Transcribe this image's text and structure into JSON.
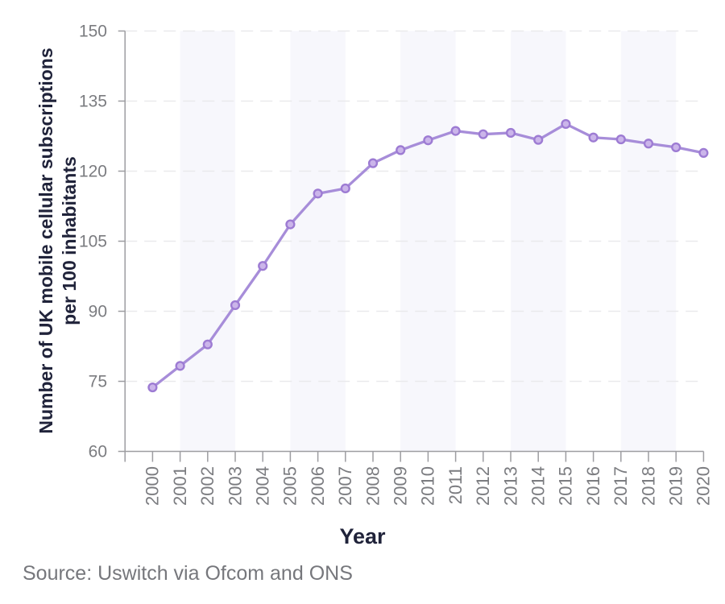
{
  "figure": {
    "source_note": "Source: Uswitch via Ofcom and ONS"
  },
  "chart_data": {
    "type": "line",
    "title": "",
    "xlabel": "Year",
    "ylabel": "Number of UK mobile cellular subscriptions per 100 inhabitants",
    "ylabel_lines": [
      "Number of UK mobile cellular subscriptions",
      "per 100 inhabitants"
    ],
    "x": [
      2000,
      2001,
      2002,
      2003,
      2004,
      2005,
      2006,
      2007,
      2008,
      2009,
      2010,
      2011,
      2012,
      2013,
      2014,
      2015,
      2016,
      2017,
      2018,
      2019,
      2020
    ],
    "series": [
      {
        "values": [
          73.7,
          78.3,
          82.9,
          91.3,
          99.7,
          108.6,
          115.2,
          116.3,
          121.7,
          124.5,
          126.6,
          128.6,
          127.9,
          128.2,
          126.7,
          130.1,
          127.2,
          126.8,
          125.9,
          125.1,
          123.9
        ]
      }
    ],
    "xlim": [
      1999,
      2020
    ],
    "ylim": [
      60,
      150
    ],
    "yticks": [
      60,
      75,
      90,
      105,
      120,
      135,
      150
    ],
    "grid": "horizontal-dashed",
    "legend_position": "none",
    "plot_bands_x": [
      [
        2001,
        2003
      ],
      [
        2005,
        2007
      ],
      [
        2009,
        2011
      ],
      [
        2013,
        2015
      ],
      [
        2017,
        2019
      ]
    ],
    "colors": {
      "line": "#a78dd9",
      "marker_fill": "#cbb5ea",
      "marker_stroke": "#9d7bd3",
      "band": "#f7f7fc",
      "gridline": "#e9e9ec",
      "axis": "#9d9da1",
      "tick_label": "#7b7c80",
      "axis_title": "#20233a",
      "source": "#76777c"
    }
  }
}
